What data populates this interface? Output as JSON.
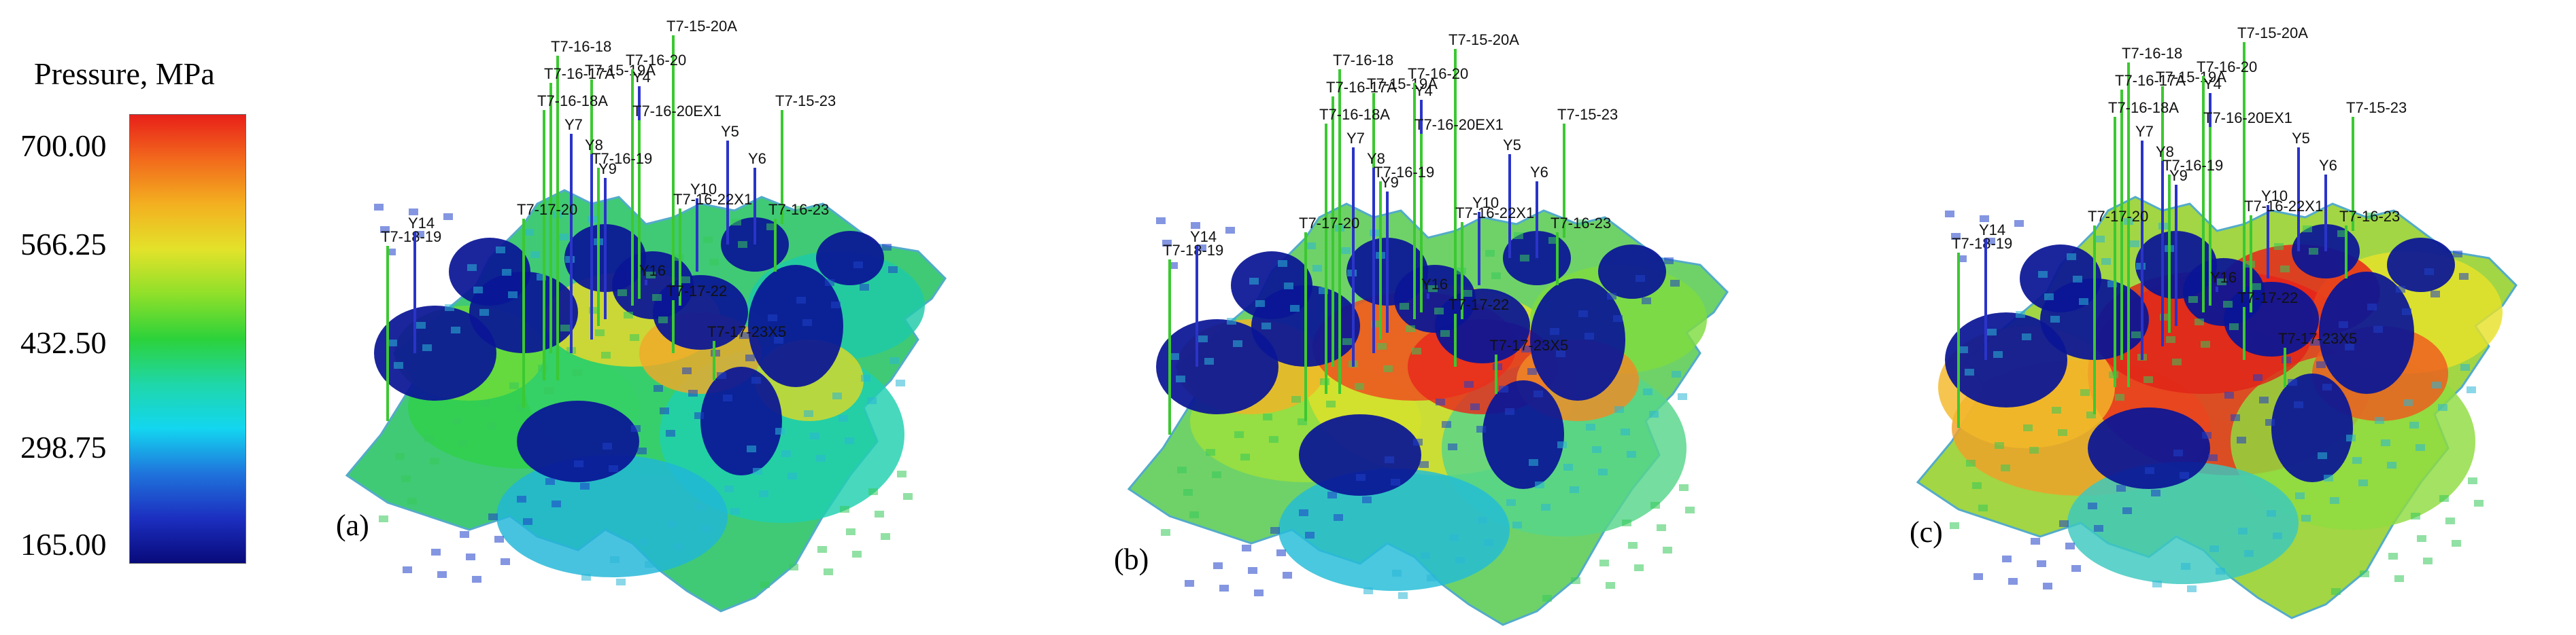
{
  "legend": {
    "title": "Pressure, MPa",
    "ticks": [
      "700.00",
      "566.25",
      "432.50",
      "298.75",
      "165.00"
    ]
  },
  "panels": [
    {
      "label": "(a)",
      "wells": [
        {
          "name": "T7-15-20A",
          "c": "green"
        },
        {
          "name": "T7-16-18",
          "c": "green"
        },
        {
          "name": "T7-15-19A",
          "c": "green"
        },
        {
          "name": "T7-16-20",
          "c": "green"
        },
        {
          "name": "T7-16-17A",
          "c": "green"
        },
        {
          "name": "Y4",
          "c": "blue"
        },
        {
          "name": "T7-16-18A",
          "c": "green"
        },
        {
          "name": "T7-16-20EX1",
          "c": "green"
        },
        {
          "name": "Y5",
          "c": "blue"
        },
        {
          "name": "T7-15-23",
          "c": "green"
        },
        {
          "name": "Y7",
          "c": "blue"
        },
        {
          "name": "Y8",
          "c": "blue"
        },
        {
          "name": "T7-16-19",
          "c": "green"
        },
        {
          "name": "Y9",
          "c": "blue"
        },
        {
          "name": "Y6",
          "c": "blue"
        },
        {
          "name": "Y10",
          "c": "blue"
        },
        {
          "name": "T7-16-22X1",
          "c": "green"
        },
        {
          "name": "T7-16-23",
          "c": "green"
        },
        {
          "name": "T7-18-19",
          "c": "green"
        },
        {
          "name": "Y14",
          "c": "blue"
        },
        {
          "name": "T7-17-20",
          "c": "green"
        },
        {
          "name": "Y16",
          "c": "blue"
        },
        {
          "name": "T7-17-22",
          "c": "green"
        },
        {
          "name": "T7-17-23X5",
          "c": "green"
        }
      ]
    },
    {
      "label": "(b)",
      "wells": [
        {
          "name": "T7-15-20A",
          "c": "green"
        },
        {
          "name": "T7-16-18",
          "c": "green"
        },
        {
          "name": "T7-15-19A",
          "c": "green"
        },
        {
          "name": "T7-16-20",
          "c": "green"
        },
        {
          "name": "T7-16-17A",
          "c": "green"
        },
        {
          "name": "Y4",
          "c": "blue"
        },
        {
          "name": "T7-16-18A",
          "c": "green"
        },
        {
          "name": "T7-16-20EX1",
          "c": "green"
        },
        {
          "name": "Y5",
          "c": "blue"
        },
        {
          "name": "T7-15-23",
          "c": "green"
        },
        {
          "name": "Y7",
          "c": "blue"
        },
        {
          "name": "Y8",
          "c": "blue"
        },
        {
          "name": "T7-16-19",
          "c": "green"
        },
        {
          "name": "Y9",
          "c": "blue"
        },
        {
          "name": "Y6",
          "c": "blue"
        },
        {
          "name": "Y10",
          "c": "blue"
        },
        {
          "name": "T7-16-22X1",
          "c": "green"
        },
        {
          "name": "T7-16-23",
          "c": "green"
        },
        {
          "name": "T7-18-19",
          "c": "green"
        },
        {
          "name": "Y14",
          "c": "blue"
        },
        {
          "name": "T7-17-20",
          "c": "green"
        },
        {
          "name": "Y16",
          "c": "blue"
        },
        {
          "name": "T7-17-22",
          "c": "green"
        },
        {
          "name": "T7-17-23X5",
          "c": "green"
        }
      ]
    },
    {
      "label": "(c)",
      "wells": [
        {
          "name": "T7-15-20A",
          "c": "green"
        },
        {
          "name": "T7-16-18",
          "c": "green"
        },
        {
          "name": "T7-15-19A",
          "c": "green"
        },
        {
          "name": "T7-16-20",
          "c": "green"
        },
        {
          "name": "T7-16-17A",
          "c": "green"
        },
        {
          "name": "Y4",
          "c": "blue"
        },
        {
          "name": "T7-16-18A",
          "c": "green"
        },
        {
          "name": "T7-16-20EX1",
          "c": "green"
        },
        {
          "name": "Y5",
          "c": "blue"
        },
        {
          "name": "T7-15-23",
          "c": "green"
        },
        {
          "name": "Y7",
          "c": "blue"
        },
        {
          "name": "Y8",
          "c": "blue"
        },
        {
          "name": "T7-16-19",
          "c": "green"
        },
        {
          "name": "Y9",
          "c": "blue"
        },
        {
          "name": "Y6",
          "c": "blue"
        },
        {
          "name": "Y10",
          "c": "blue"
        },
        {
          "name": "T7-16-22X1",
          "c": "green"
        },
        {
          "name": "T7-16-23",
          "c": "green"
        },
        {
          "name": "T7-18-19",
          "c": "green"
        },
        {
          "name": "Y14",
          "c": "blue"
        },
        {
          "name": "T7-17-20",
          "c": "green"
        },
        {
          "name": "Y16",
          "c": "blue"
        },
        {
          "name": "T7-17-22",
          "c": "green"
        },
        {
          "name": "T7-17-23X5",
          "c": "green"
        }
      ]
    }
  ],
  "colors": {
    "low": "#080a7a",
    "high": "#e8201a",
    "green_well": "#3cc832",
    "blue_well": "#2a34c8"
  }
}
